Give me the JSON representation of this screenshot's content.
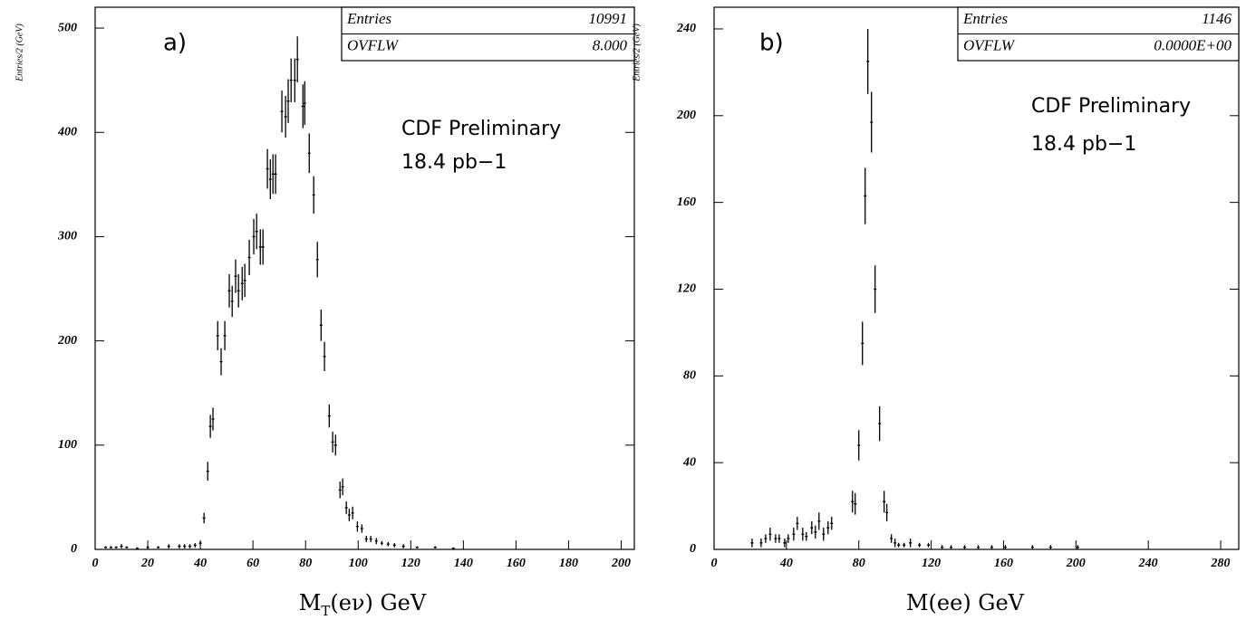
{
  "chart_data": [
    {
      "type": "errorbar",
      "label": "a)",
      "y_label": "Entries/2 (GeV)",
      "x_label": {
        "main": "M",
        "sub": "T",
        "rest": "(eν) GeV"
      },
      "stats": [
        [
          "Entries",
          "10991"
        ],
        [
          "OVFLW",
          "8.000"
        ]
      ],
      "annotations": [
        "CDF Preliminary",
        "18.4 pb−1"
      ],
      "color": "#000000",
      "xlim": [
        0,
        205
      ],
      "ylim": [
        0,
        520
      ],
      "xticks": [
        0,
        20,
        40,
        60,
        80,
        100,
        120,
        140,
        160,
        180,
        200
      ],
      "yticks": [
        0,
        100,
        200,
        300,
        400,
        500
      ],
      "x": [
        4,
        6,
        8,
        10,
        12,
        16,
        20,
        24,
        28,
        32,
        34,
        36,
        38,
        40,
        41.4,
        42.8,
        43.8,
        44.8,
        46.6,
        47.9,
        49.3,
        51,
        52.1,
        53.4,
        54.5,
        55.9,
        56.9,
        58.6,
        60.3,
        61.4,
        62.8,
        63.8,
        65.5,
        66.6,
        67.6,
        68.6,
        71,
        72.4,
        73.4,
        74.5,
        75.9,
        76.9,
        79,
        79.7,
        81.4,
        83.1,
        84.5,
        85.9,
        87.2,
        89,
        90.3,
        91.4,
        93.1,
        94.1,
        95.5,
        96.6,
        97.9,
        99.7,
        101.4,
        103.1,
        104.8,
        106.9,
        109,
        111.4,
        113.8,
        117.2,
        122.4,
        129.3,
        136.2
      ],
      "values": [
        2,
        2,
        2,
        3,
        2,
        1,
        2,
        2,
        3,
        3,
        3,
        3,
        4,
        6,
        30,
        75,
        118,
        125,
        205,
        180,
        205,
        248,
        238,
        262,
        248,
        255,
        258,
        280,
        300,
        305,
        290,
        290,
        365,
        355,
        360,
        360,
        420,
        415,
        430,
        450,
        450,
        470,
        425,
        428,
        380,
        340,
        278,
        215,
        185,
        128,
        103,
        100,
        57,
        60,
        40,
        33,
        35,
        22,
        20,
        10,
        10,
        8,
        6,
        5,
        4,
        3,
        2,
        2,
        1
      ],
      "errors": [
        1,
        1,
        1,
        2,
        1,
        1,
        1,
        1,
        2,
        2,
        2,
        2,
        2,
        2,
        5,
        9,
        11,
        11,
        14,
        13,
        14,
        16,
        15,
        16,
        16,
        16,
        16,
        17,
        17,
        17,
        17,
        17,
        19,
        19,
        19,
        19,
        20,
        20,
        21,
        21,
        21,
        22,
        21,
        21,
        19,
        18,
        17,
        15,
        14,
        11,
        10,
        10,
        8,
        8,
        6,
        6,
        6,
        5,
        4,
        3,
        3,
        3,
        2,
        2,
        2,
        2,
        1,
        1,
        1
      ]
    },
    {
      "type": "errorbar",
      "label": "b)",
      "y_label": "Entries/2 (GeV)",
      "x_label": {
        "main": "M(ee) GeV"
      },
      "stats": [
        [
          "Entries",
          "1146"
        ],
        [
          "OVFLW",
          "0.0000E+00"
        ]
      ],
      "annotations": [
        "CDF Preliminary",
        "18.4 pb−1"
      ],
      "color": "#000000",
      "xlim": [
        0,
        290
      ],
      "ylim": [
        0,
        250
      ],
      "xticks": [
        0,
        40,
        80,
        120,
        160,
        200,
        240,
        280
      ],
      "yticks": [
        0,
        40,
        80,
        120,
        160,
        200,
        240
      ],
      "x": [
        21,
        26,
        28.5,
        31,
        34,
        36,
        39,
        41,
        44,
        46,
        49,
        51,
        54,
        56,
        58,
        60.5,
        63,
        65,
        76.5,
        78,
        80,
        82,
        83.5,
        85,
        87,
        89,
        91.5,
        94,
        95.5,
        98,
        100,
        102,
        105,
        108.5,
        113.5,
        118.5,
        126,
        131,
        138.5,
        146,
        153.5,
        161,
        176,
        186,
        201
      ],
      "values": [
        3,
        3,
        5,
        7,
        5,
        5,
        3,
        5,
        7,
        12,
        7,
        6,
        10,
        8,
        13,
        7,
        10,
        12,
        22,
        21,
        48,
        95,
        163,
        225,
        197,
        120,
        58,
        22,
        17,
        5,
        3,
        2,
        2,
        3,
        2,
        2,
        1,
        1,
        1,
        1,
        1,
        1,
        1,
        1,
        1
      ],
      "errors": [
        2,
        2,
        2,
        3,
        2,
        2,
        2,
        2,
        3,
        3,
        3,
        2,
        3,
        3,
        4,
        3,
        3,
        3,
        5,
        5,
        7,
        10,
        13,
        15,
        14,
        11,
        8,
        5,
        4,
        2,
        2,
        1,
        1,
        2,
        1,
        1,
        1,
        1,
        1,
        1,
        1,
        1,
        1,
        1,
        1
      ]
    }
  ]
}
